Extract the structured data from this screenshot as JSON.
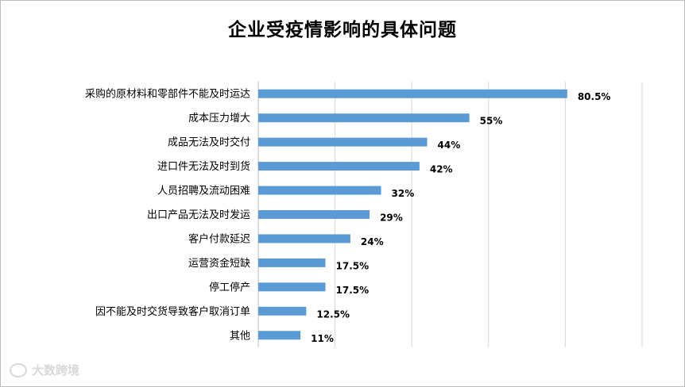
{
  "chart_data": {
    "type": "bar",
    "orientation": "horizontal",
    "title": "企业受疫情影响的具体问题",
    "xlabel": "",
    "ylabel": "",
    "xlim": [
      0,
      100
    ],
    "grid": "vertical gridlines",
    "legend": "none",
    "bar_color": "#5b9bd5",
    "categories": [
      "采购的原材料和零部件不能及时运达",
      "成本压力增大",
      "成品无法及时交付",
      "进口件无法及时到货",
      "人员招聘及流动困难",
      "出口产品无法及时发运",
      "客户付款延迟",
      "运营资金短缺",
      "停工停产",
      "因不能及时交货导致客户取消订单",
      "其他"
    ],
    "values": [
      80.5,
      55,
      44,
      42,
      32,
      29,
      24,
      17.5,
      17.5,
      12.5,
      11
    ],
    "value_labels": [
      "80.5%",
      "55%",
      "44%",
      "42%",
      "32%",
      "29%",
      "24%",
      "17.5%",
      "17.5%",
      "12.5%",
      "11%"
    ]
  },
  "watermark": {
    "text": "大数跨境",
    "color": "#d9d9d9"
  }
}
